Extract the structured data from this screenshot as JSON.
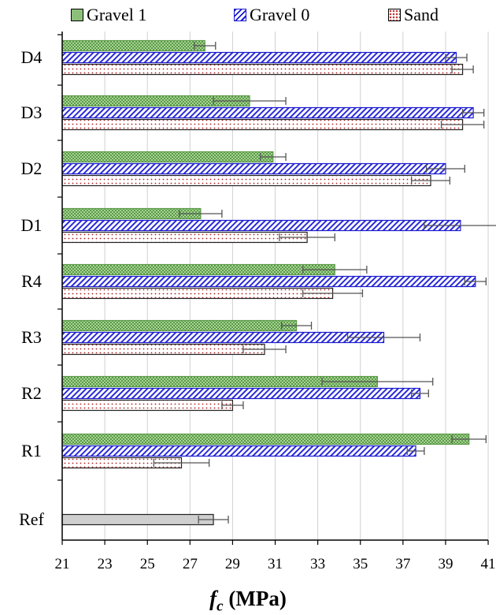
{
  "chart_data": {
    "type": "bar",
    "orientation": "horizontal",
    "categories": [
      "Ref",
      "R1",
      "R2",
      "R3",
      "R4",
      "D1",
      "D2",
      "D3",
      "D4"
    ],
    "series": [
      {
        "name": "Gravel 1",
        "values": [
          null,
          40.1,
          35.8,
          32.0,
          33.8,
          27.5,
          30.9,
          29.8,
          27.7
        ],
        "errors": [
          null,
          0.8,
          2.6,
          0.7,
          1.5,
          1.0,
          0.6,
          1.7,
          0.5
        ],
        "color": "#70a860"
      },
      {
        "name": "Gravel 0",
        "values": [
          null,
          37.6,
          37.8,
          36.1,
          40.4,
          39.7,
          39.0,
          40.3,
          39.5
        ],
        "errors": [
          null,
          0.4,
          0.4,
          1.7,
          0.5,
          1.7,
          0.9,
          0.5,
          0.5
        ],
        "color": "#1a1ad0"
      },
      {
        "name": "Sand",
        "values": [
          null,
          26.6,
          29.0,
          30.5,
          33.7,
          32.5,
          38.3,
          39.8,
          39.8
        ],
        "errors": [
          null,
          1.3,
          0.5,
          1.0,
          1.4,
          1.3,
          0.9,
          1.0,
          0.5
        ],
        "color": "#c03030"
      },
      {
        "name": "",
        "values": [
          28.1,
          null,
          null,
          null,
          null,
          null,
          null,
          null,
          null
        ],
        "errors": [
          0.7,
          null,
          null,
          null,
          null,
          null,
          null,
          null,
          null
        ],
        "color": "#c8c8c8"
      }
    ],
    "x_ticks": [
      21,
      23,
      25,
      27,
      29,
      31,
      33,
      35,
      37,
      39,
      41
    ],
    "xlim": [
      21,
      42
    ],
    "xlabel_symbol": "f",
    "xlabel_subscript": "c",
    "xlabel_unit": "(MPa)",
    "grid": "vertical",
    "legend_position": "top"
  }
}
